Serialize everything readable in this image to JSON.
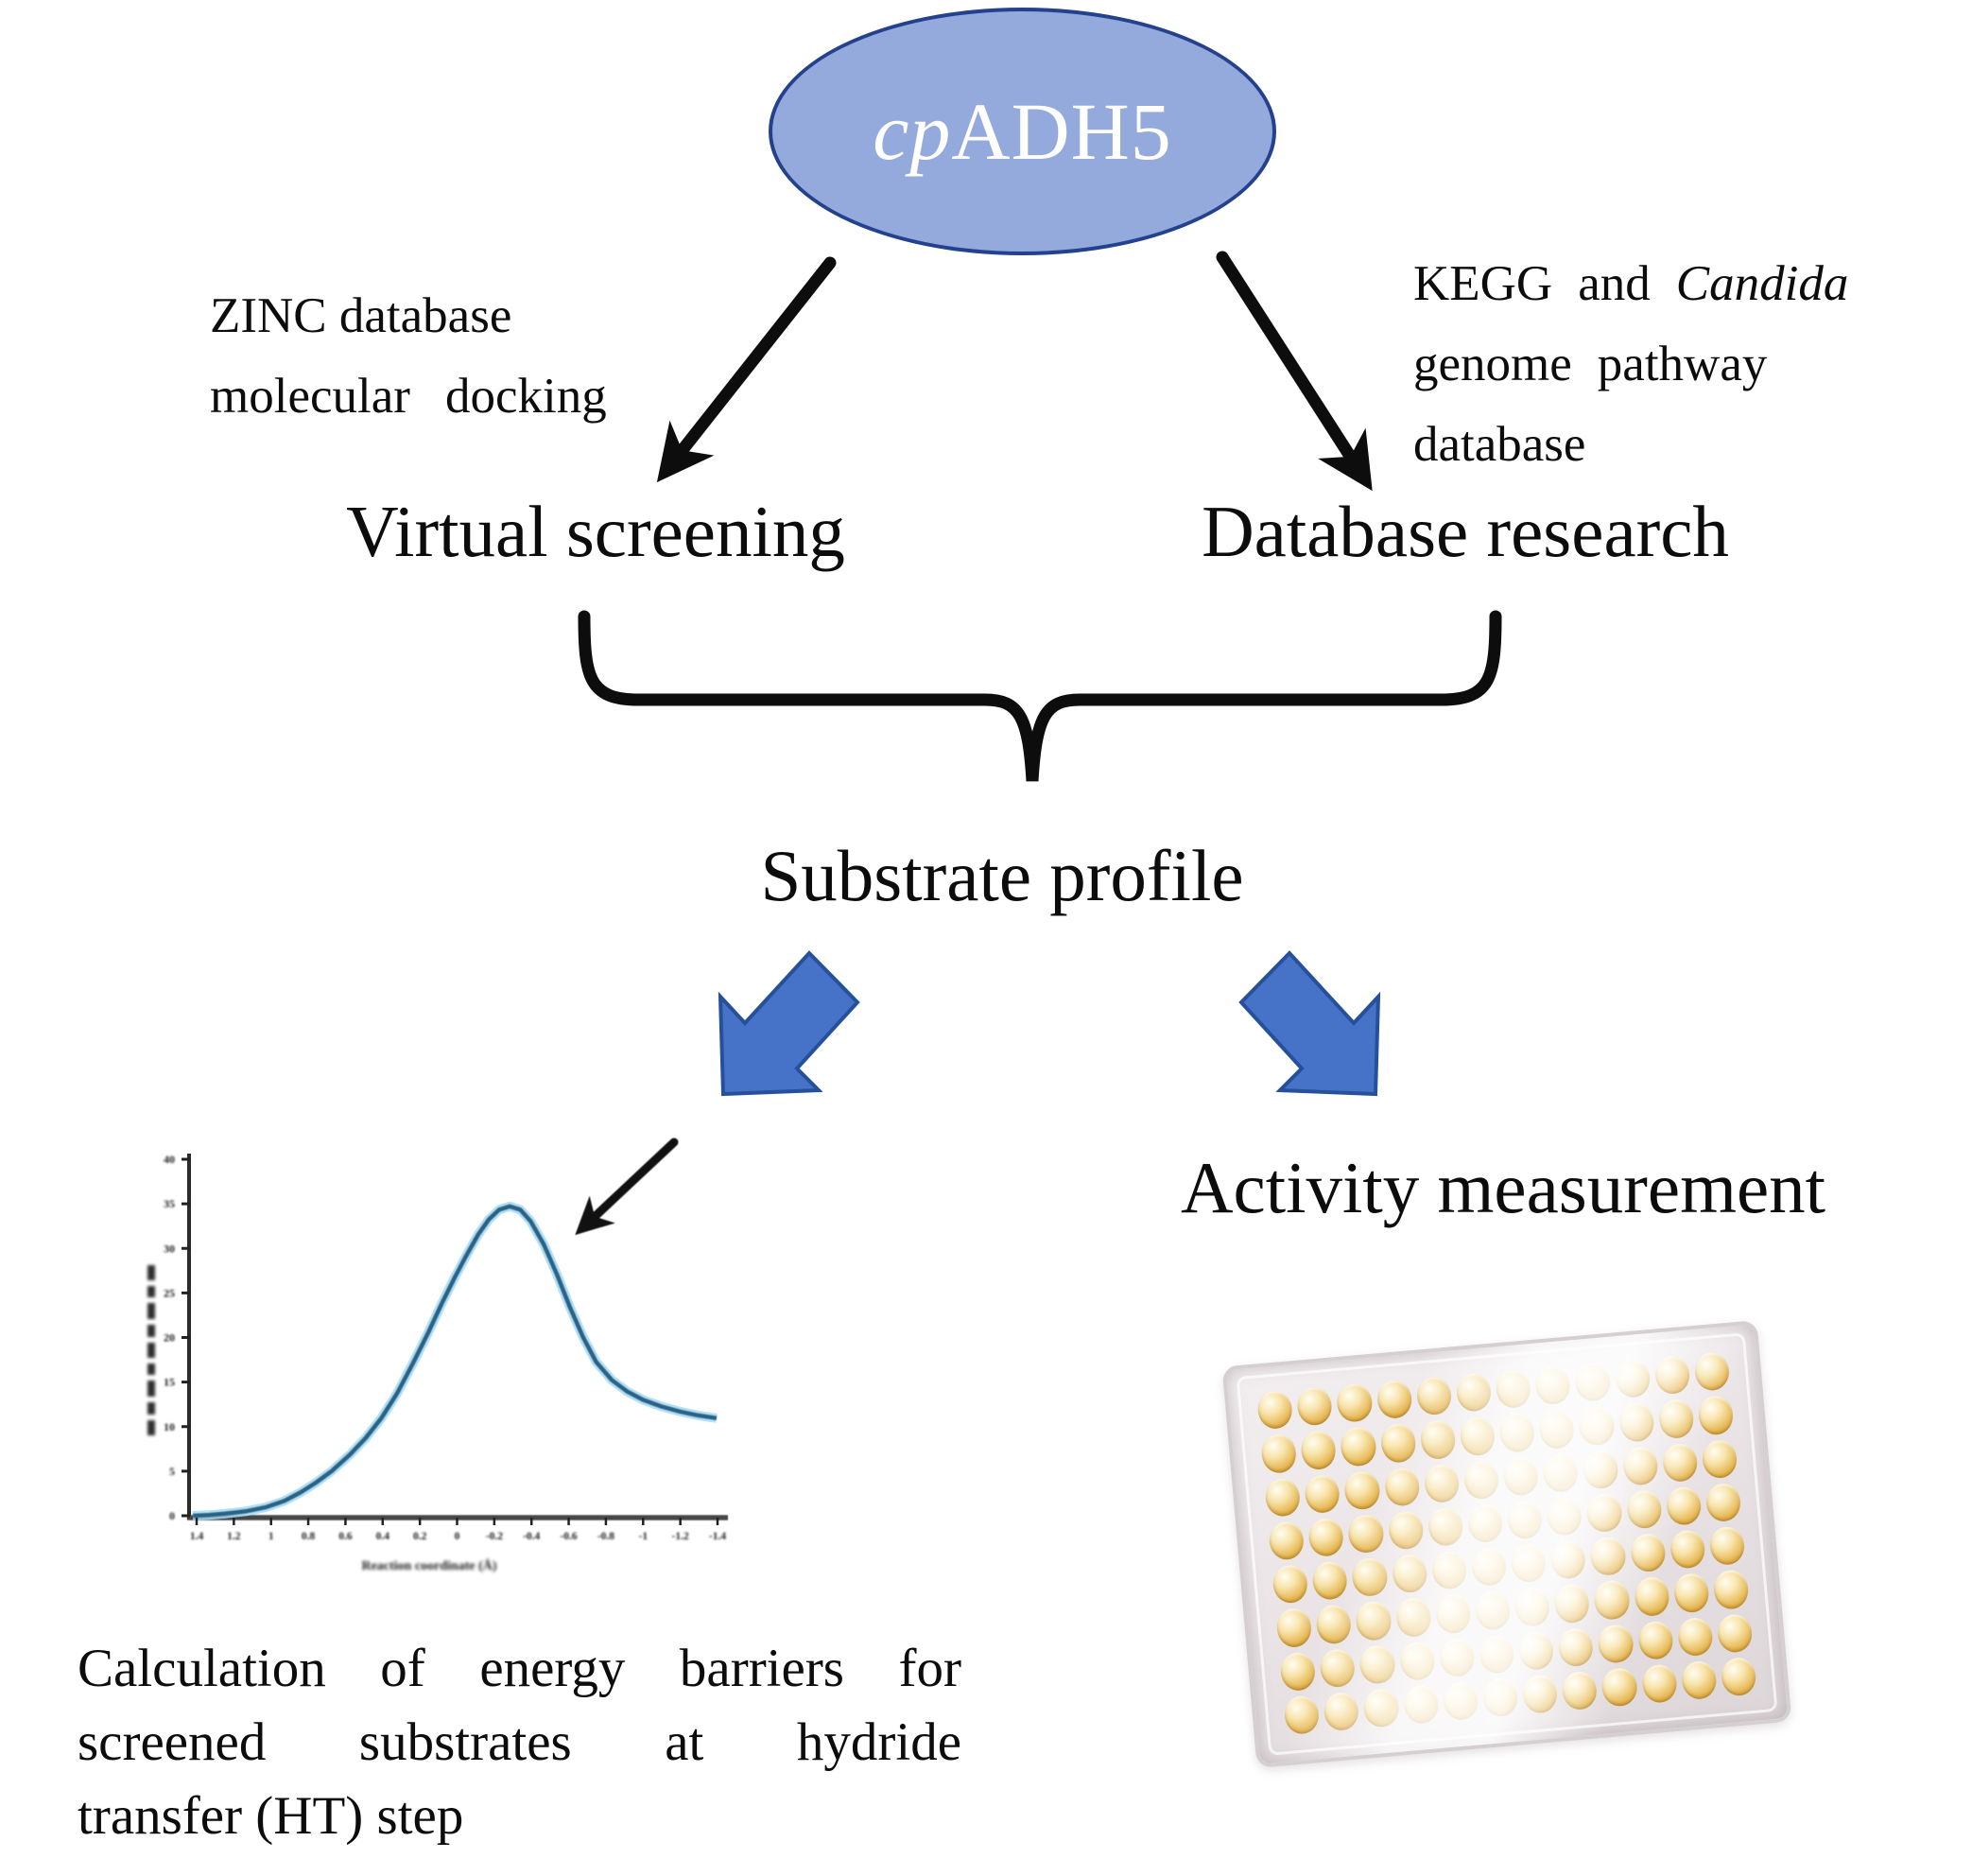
{
  "nodes": {
    "root": {
      "italic_part": "cp",
      "normal_part": "ADH5"
    },
    "virtual_screening": "Virtual screening",
    "database_research": "Database research",
    "substrate_profile": "Substrate profile",
    "activity_measurement": "Activity measurement"
  },
  "annotations": {
    "zinc": {
      "line1": "ZINC database",
      "line2": "molecular docking"
    },
    "kegg": {
      "line1_normal": "KEGG and ",
      "line1_italic": "Candida",
      "line2": "genome pathway",
      "line3": "database"
    }
  },
  "caption": {
    "line1": "Calculation of energy barriers for",
    "line2": "screened substrates at hydride",
    "line3": "transfer (HT) step"
  },
  "colors": {
    "text_color": "#0c0c0c",
    "ellipse_fill": "#94a9dc",
    "ellipse_border": "#24418e",
    "block_arrow_fill": "#4673c8",
    "block_arrow_border": "#27509b",
    "connector_color": "#0d0d0d",
    "curve_stroke": "#2a6285",
    "curve_glow": "#a8dcf5",
    "well_gold": "#e8bc5c"
  },
  "chart_data": {
    "type": "line",
    "title": "",
    "xlabel_estimated": "Reaction coordinate (Å)",
    "ylabel": "",
    "legibility_note": "embedded chart is a low-resolution image; axis titles and tick numbers are blurred beyond exact legibility in the source screenshot",
    "x_tick_labels_estimated": [
      "1.4",
      "1.2",
      "1",
      "0.8",
      "0.6",
      "0.4",
      "0.2",
      "0",
      "-0.2",
      "-0.4",
      "-0.6",
      "-0.8",
      "-1",
      "-1.2",
      "-1.4"
    ],
    "y_tick_labels_estimated": [
      "40",
      "35",
      "30",
      "25",
      "20",
      "15",
      "10",
      "5",
      "0"
    ],
    "axis_ranges": {
      "x_fraction": [
        0,
        1
      ],
      "y_fraction": [
        0,
        1
      ]
    },
    "grid": false,
    "legend": false,
    "annotation": "black arrow pointing at the descending shoulder just right of the curve peak",
    "series": [
      {
        "name": "energy-profile-curve",
        "points_fraction": [
          [
            0.0,
            0.0
          ],
          [
            0.03,
            0.002
          ],
          [
            0.06,
            0.006
          ],
          [
            0.1,
            0.013
          ],
          [
            0.14,
            0.026
          ],
          [
            0.175,
            0.045
          ],
          [
            0.205,
            0.07
          ],
          [
            0.235,
            0.1
          ],
          [
            0.265,
            0.135
          ],
          [
            0.3,
            0.185
          ],
          [
            0.33,
            0.235
          ],
          [
            0.36,
            0.295
          ],
          [
            0.39,
            0.37
          ],
          [
            0.42,
            0.46
          ],
          [
            0.45,
            0.555
          ],
          [
            0.475,
            0.64
          ],
          [
            0.5,
            0.72
          ],
          [
            0.52,
            0.78
          ],
          [
            0.545,
            0.85
          ],
          [
            0.565,
            0.895
          ],
          [
            0.585,
            0.925
          ],
          [
            0.605,
            0.935
          ],
          [
            0.625,
            0.925
          ],
          [
            0.645,
            0.89
          ],
          [
            0.67,
            0.82
          ],
          [
            0.695,
            0.73
          ],
          [
            0.72,
            0.63
          ],
          [
            0.745,
            0.54
          ],
          [
            0.77,
            0.465
          ],
          [
            0.8,
            0.41
          ],
          [
            0.83,
            0.375
          ],
          [
            0.86,
            0.35
          ],
          [
            0.895,
            0.33
          ],
          [
            0.93,
            0.315
          ],
          [
            0.965,
            0.303
          ],
          [
            1.0,
            0.295
          ]
        ]
      }
    ]
  },
  "microplate": {
    "rows": 8,
    "cols": 12,
    "description": "96-well microplate filled with yellow samples"
  }
}
